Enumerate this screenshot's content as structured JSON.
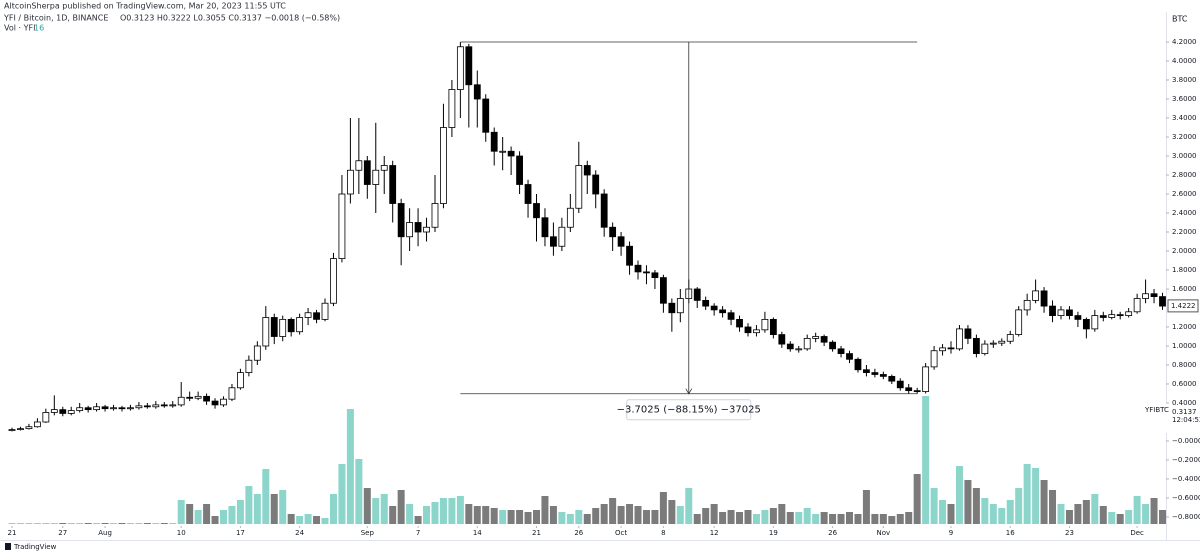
{
  "header": {
    "publisher": "AltcoinSherpa published on TradingView.com, Mar 20, 2023 11:55 UTC",
    "symbol": "YFI / Bitcoin, 1D, BINANCE",
    "ohlc": "O0.3123 H0.3222 L0.3055 C0.3137 −0.0018 (−0.58%)",
    "volume_label": "Vol · YFI",
    "volume_value": "16"
  },
  "footer": {
    "brand": "TradingView"
  },
  "chart_data": {
    "type": "candlestick",
    "axis_unit": "BTC",
    "up_color": "#ffffff",
    "down_color": "#000000",
    "vol_up_color": "#8cd5cb",
    "vol_down_color": "#7b7b7b",
    "xlim": [
      -1.42,
      136.65
    ],
    "xticks": [
      {
        "value": 0,
        "label": "21"
      },
      {
        "value": 6,
        "label": "27"
      },
      {
        "value": 11,
        "label": "Aug"
      },
      {
        "value": 20,
        "label": "10"
      },
      {
        "value": 27,
        "label": "17"
      },
      {
        "value": 34,
        "label": "24"
      },
      {
        "value": 42,
        "label": "Sep"
      },
      {
        "value": 48,
        "label": "7"
      },
      {
        "value": 55,
        "label": "14"
      },
      {
        "value": 62,
        "label": "21"
      },
      {
        "value": 67,
        "label": "26"
      },
      {
        "value": 72,
        "label": "Oct"
      },
      {
        "value": 77,
        "label": "8"
      },
      {
        "value": 83,
        "label": "12"
      },
      {
        "value": 90,
        "label": "19"
      },
      {
        "value": 97,
        "label": "26"
      },
      {
        "value": 103,
        "label": "Nov"
      },
      {
        "value": 111,
        "label": "9"
      },
      {
        "value": 118,
        "label": "16"
      },
      {
        "value": 125,
        "label": "23"
      },
      {
        "value": 133,
        "label": "Dec"
      }
    ],
    "ylim": [
      -0.874,
      4.516
    ],
    "yticks": [
      {
        "value": 4.2,
        "label": "4.2000"
      },
      {
        "value": 4.0,
        "label": "4.0000"
      },
      {
        "value": 3.8,
        "label": "3.8000"
      },
      {
        "value": 3.6,
        "label": "3.6000"
      },
      {
        "value": 3.4,
        "label": "3.4000"
      },
      {
        "value": 3.2,
        "label": "3.2000"
      },
      {
        "value": 3.0,
        "label": "3.0000"
      },
      {
        "value": 2.8,
        "label": "2.8000"
      },
      {
        "value": 2.6,
        "label": "2.6000"
      },
      {
        "value": 2.4,
        "label": "2.4000"
      },
      {
        "value": 2.2,
        "label": "2.2000"
      },
      {
        "value": 2.0,
        "label": "2.0000"
      },
      {
        "value": 1.8,
        "label": "1.8000"
      },
      {
        "value": 1.6,
        "label": "1.6000"
      },
      {
        "value": 1.2,
        "label": "1.2000"
      },
      {
        "value": 1.0,
        "label": "1.0000"
      },
      {
        "value": 0.8,
        "label": "0.8000"
      },
      {
        "value": 0.6,
        "label": "0.6000"
      },
      {
        "value": 0.4,
        "label": "0.4000"
      },
      {
        "value": 0.0,
        "label": "−0.0000"
      },
      {
        "value": -0.2,
        "label": "−0.2000"
      },
      {
        "value": -0.4,
        "label": "−0.4000"
      },
      {
        "value": -0.6,
        "label": "−0.6000"
      },
      {
        "value": -0.8,
        "label": "−0.8000"
      }
    ],
    "last_price": 1.4222,
    "symbol_tag": {
      "name": "YFIBTC",
      "price": "0.3137",
      "countdown": "12:04:52"
    },
    "measure": {
      "from": 4.2,
      "to": 0.4975,
      "start_index": 53,
      "end_index": 107,
      "label": "−3.7025 (−88.15%) −37025"
    },
    "vlim": [
      0,
      130
    ],
    "candles": [
      [
        0.11,
        0.14,
        0.1,
        0.12
      ],
      [
        0.12,
        0.15,
        0.11,
        0.13
      ],
      [
        0.13,
        0.18,
        0.12,
        0.15
      ],
      [
        0.15,
        0.24,
        0.14,
        0.2
      ],
      [
        0.2,
        0.34,
        0.19,
        0.3
      ],
      [
        0.3,
        0.48,
        0.27,
        0.33
      ],
      [
        0.33,
        0.36,
        0.26,
        0.29
      ],
      [
        0.29,
        0.36,
        0.27,
        0.32
      ],
      [
        0.32,
        0.4,
        0.3,
        0.35
      ],
      [
        0.35,
        0.37,
        0.3,
        0.33
      ],
      [
        0.33,
        0.4,
        0.31,
        0.36
      ],
      [
        0.36,
        0.38,
        0.31,
        0.34
      ],
      [
        0.34,
        0.38,
        0.32,
        0.35
      ],
      [
        0.35,
        0.37,
        0.31,
        0.34
      ],
      [
        0.34,
        0.38,
        0.32,
        0.35
      ],
      [
        0.35,
        0.41,
        0.33,
        0.37
      ],
      [
        0.37,
        0.4,
        0.34,
        0.36
      ],
      [
        0.36,
        0.42,
        0.34,
        0.38
      ],
      [
        0.38,
        0.41,
        0.35,
        0.37
      ],
      [
        0.37,
        0.42,
        0.35,
        0.38
      ],
      [
        0.38,
        0.62,
        0.36,
        0.46
      ],
      [
        0.46,
        0.52,
        0.42,
        0.45
      ],
      [
        0.45,
        0.52,
        0.43,
        0.47
      ],
      [
        0.47,
        0.5,
        0.38,
        0.42
      ],
      [
        0.42,
        0.45,
        0.34,
        0.38
      ],
      [
        0.38,
        0.47,
        0.36,
        0.44
      ],
      [
        0.44,
        0.6,
        0.42,
        0.56
      ],
      [
        0.56,
        0.76,
        0.54,
        0.72
      ],
      [
        0.72,
        0.9,
        0.68,
        0.85
      ],
      [
        0.85,
        1.05,
        0.8,
        1.0
      ],
      [
        1.0,
        1.42,
        0.96,
        1.3
      ],
      [
        1.3,
        1.34,
        1.02,
        1.1
      ],
      [
        1.1,
        1.32,
        1.05,
        1.28
      ],
      [
        1.28,
        1.3,
        1.1,
        1.15
      ],
      [
        1.15,
        1.34,
        1.12,
        1.3
      ],
      [
        1.3,
        1.4,
        1.22,
        1.35
      ],
      [
        1.35,
        1.38,
        1.24,
        1.28
      ],
      [
        1.28,
        1.5,
        1.26,
        1.45
      ],
      [
        1.45,
        1.98,
        1.42,
        1.92
      ],
      [
        1.92,
        2.8,
        1.88,
        2.6
      ],
      [
        2.6,
        3.4,
        2.5,
        2.85
      ],
      [
        2.85,
        3.4,
        2.6,
        2.95
      ],
      [
        2.95,
        3.0,
        2.55,
        2.7
      ],
      [
        2.7,
        3.35,
        2.4,
        2.85
      ],
      [
        2.85,
        3.0,
        2.6,
        2.9
      ],
      [
        2.9,
        2.95,
        2.3,
        2.5
      ],
      [
        2.5,
        2.55,
        1.85,
        2.15
      ],
      [
        2.15,
        2.45,
        2.0,
        2.3
      ],
      [
        2.3,
        2.45,
        2.05,
        2.2
      ],
      [
        2.2,
        2.35,
        2.1,
        2.25
      ],
      [
        2.25,
        2.8,
        2.2,
        2.5
      ],
      [
        2.5,
        3.55,
        2.45,
        3.3
      ],
      [
        3.3,
        3.8,
        3.2,
        3.7
      ],
      [
        3.7,
        4.2,
        3.4,
        4.15
      ],
      [
        4.15,
        4.18,
        3.3,
        3.75
      ],
      [
        3.75,
        3.9,
        3.3,
        3.6
      ],
      [
        3.6,
        3.65,
        3.15,
        3.25
      ],
      [
        3.25,
        3.3,
        2.9,
        3.05
      ],
      [
        3.05,
        3.2,
        2.85,
        3.05
      ],
      [
        3.05,
        3.1,
        2.8,
        3.0
      ],
      [
        3.0,
        3.05,
        2.6,
        2.7
      ],
      [
        2.7,
        2.75,
        2.35,
        2.5
      ],
      [
        2.5,
        2.6,
        2.1,
        2.35
      ],
      [
        2.35,
        2.45,
        2.05,
        2.15
      ],
      [
        2.15,
        2.3,
        1.95,
        2.05
      ],
      [
        2.05,
        2.35,
        2.0,
        2.25
      ],
      [
        2.25,
        2.6,
        2.2,
        2.45
      ],
      [
        2.45,
        3.15,
        2.4,
        2.9
      ],
      [
        2.9,
        2.95,
        2.6,
        2.8
      ],
      [
        2.8,
        2.85,
        2.45,
        2.6
      ],
      [
        2.6,
        2.65,
        2.15,
        2.25
      ],
      [
        2.25,
        2.3,
        2.0,
        2.15
      ],
      [
        2.15,
        2.2,
        1.95,
        2.05
      ],
      [
        2.05,
        2.1,
        1.75,
        1.85
      ],
      [
        1.85,
        1.9,
        1.7,
        1.78
      ],
      [
        1.78,
        1.85,
        1.65,
        1.77
      ],
      [
        1.77,
        1.8,
        1.6,
        1.72
      ],
      [
        1.72,
        1.75,
        1.35,
        1.45
      ],
      [
        1.45,
        1.5,
        1.15,
        1.35
      ],
      [
        1.35,
        1.6,
        1.25,
        1.5
      ],
      [
        1.5,
        1.7,
        1.45,
        1.6
      ],
      [
        1.6,
        1.62,
        1.4,
        1.48
      ],
      [
        1.48,
        1.52,
        1.38,
        1.42
      ],
      [
        1.42,
        1.45,
        1.32,
        1.38
      ],
      [
        1.38,
        1.42,
        1.3,
        1.35
      ],
      [
        1.35,
        1.38,
        1.22,
        1.28
      ],
      [
        1.28,
        1.32,
        1.15,
        1.2
      ],
      [
        1.2,
        1.24,
        1.1,
        1.14
      ],
      [
        1.14,
        1.22,
        1.1,
        1.17
      ],
      [
        1.17,
        1.36,
        1.14,
        1.28
      ],
      [
        1.28,
        1.3,
        1.08,
        1.12
      ],
      [
        1.12,
        1.15,
        0.98,
        1.02
      ],
      [
        1.02,
        1.05,
        0.94,
        0.97
      ],
      [
        0.97,
        1.0,
        0.93,
        0.97
      ],
      [
        0.97,
        1.12,
        0.95,
        1.08
      ],
      [
        1.08,
        1.14,
        1.04,
        1.1
      ],
      [
        1.1,
        1.12,
        1.0,
        1.04
      ],
      [
        1.04,
        1.06,
        0.94,
        0.97
      ],
      [
        0.97,
        1.0,
        0.88,
        0.92
      ],
      [
        0.92,
        0.95,
        0.82,
        0.86
      ],
      [
        0.86,
        0.88,
        0.72,
        0.75
      ],
      [
        0.75,
        0.8,
        0.68,
        0.72
      ],
      [
        0.72,
        0.76,
        0.67,
        0.7
      ],
      [
        0.7,
        0.73,
        0.65,
        0.68
      ],
      [
        0.68,
        0.7,
        0.6,
        0.63
      ],
      [
        0.63,
        0.66,
        0.53,
        0.56
      ],
      [
        0.56,
        0.6,
        0.5,
        0.53
      ],
      [
        0.53,
        0.56,
        0.4975,
        0.52
      ],
      [
        0.52,
        0.82,
        0.5,
        0.78
      ],
      [
        0.78,
        1.0,
        0.75,
        0.95
      ],
      [
        0.95,
        1.02,
        0.9,
        0.98
      ],
      [
        0.98,
        1.05,
        0.92,
        0.97
      ],
      [
        0.97,
        1.22,
        0.95,
        1.18
      ],
      [
        1.18,
        1.22,
        1.02,
        1.08
      ],
      [
        1.08,
        1.12,
        0.88,
        0.92
      ],
      [
        0.92,
        1.06,
        0.9,
        1.02
      ],
      [
        1.02,
        1.06,
        0.98,
        1.03
      ],
      [
        1.03,
        1.08,
        1.0,
        1.05
      ],
      [
        1.05,
        1.16,
        1.02,
        1.12
      ],
      [
        1.12,
        1.42,
        1.1,
        1.38
      ],
      [
        1.38,
        1.55,
        1.32,
        1.48
      ],
      [
        1.48,
        1.7,
        1.45,
        1.58
      ],
      [
        1.58,
        1.62,
        1.35,
        1.42
      ],
      [
        1.42,
        1.48,
        1.25,
        1.32
      ],
      [
        1.32,
        1.42,
        1.28,
        1.38
      ],
      [
        1.38,
        1.42,
        1.28,
        1.32
      ],
      [
        1.32,
        1.36,
        1.2,
        1.28
      ],
      [
        1.28,
        1.3,
        1.08,
        1.18
      ],
      [
        1.18,
        1.38,
        1.15,
        1.32
      ],
      [
        1.32,
        1.36,
        1.26,
        1.3
      ],
      [
        1.3,
        1.38,
        1.28,
        1.33
      ],
      [
        1.33,
        1.36,
        1.28,
        1.32
      ],
      [
        1.32,
        1.4,
        1.3,
        1.36
      ],
      [
        1.36,
        1.55,
        1.34,
        1.5
      ],
      [
        1.5,
        1.7,
        1.45,
        1.55
      ],
      [
        1.55,
        1.6,
        1.45,
        1.52
      ],
      [
        1.52,
        1.56,
        1.38,
        1.42
      ]
    ],
    "volume": [
      1,
      1,
      1,
      1,
      1,
      1,
      1,
      1,
      1,
      1,
      1,
      1,
      1,
      1,
      1,
      1,
      1,
      1,
      1,
      1,
      24,
      20,
      14,
      20,
      8,
      14,
      18,
      24,
      38,
      30,
      55,
      30,
      34,
      10,
      8,
      10,
      8,
      6,
      30,
      60,
      115,
      65,
      36,
      26,
      30,
      18,
      34,
      20,
      8,
      18,
      22,
      26,
      26,
      28,
      20,
      18,
      18,
      16,
      14,
      14,
      14,
      12,
      14,
      28,
      18,
      12,
      10,
      14,
      10,
      16,
      20,
      26,
      18,
      20,
      18,
      14,
      14,
      32,
      24,
      18,
      36,
      10,
      16,
      20,
      12,
      14,
      12,
      14,
      10,
      14,
      16,
      20,
      12,
      12,
      16,
      10,
      12,
      10,
      10,
      12,
      10,
      34,
      10,
      10,
      8,
      10,
      12,
      50,
      128,
      36,
      24,
      20,
      58,
      44,
      36,
      26,
      20,
      16,
      24,
      36,
      60,
      56,
      44,
      34,
      20,
      14,
      20,
      24,
      30,
      18,
      12,
      10,
      14,
      28,
      20,
      26,
      14
    ]
  }
}
